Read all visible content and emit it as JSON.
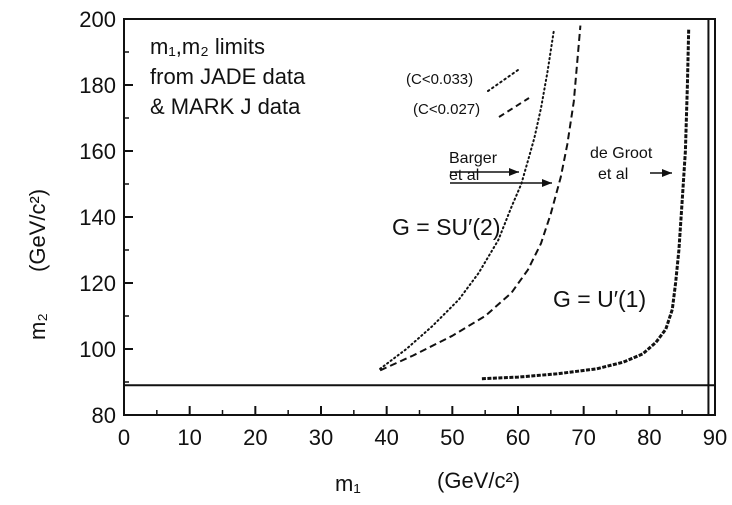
{
  "chart_data": {
    "type": "line",
    "xlabel": "m₁",
    "xunit": "(GeV/c²)",
    "ylabel": "m₂",
    "yunit": "(GeV/c²)",
    "xlim": [
      0,
      90
    ],
    "ylim": [
      80,
      200
    ],
    "xticks": [
      0,
      10,
      20,
      30,
      40,
      50,
      60,
      70,
      80,
      90
    ],
    "yticks": [
      80,
      100,
      120,
      140,
      160,
      180,
      200
    ],
    "grid": false,
    "legend": {
      "position": "top-left",
      "title": "m₁,m₂ limits",
      "lines": [
        {
          "text": "from JADE data",
          "cond": "(C<0.033)",
          "style": "dotted"
        },
        {
          "text": "& MARK J data",
          "cond": "(C<0.027)",
          "style": "dashed"
        }
      ]
    },
    "series": [
      {
        "style": "dotted",
        "group": "SU2",
        "x": [
          39,
          43,
          47,
          51,
          54,
          57,
          59,
          60.5,
          61.5,
          62.5,
          63.5,
          64.5,
          65.5
        ],
        "y": [
          94,
          100,
          107,
          115,
          123,
          133,
          143,
          150,
          157,
          164,
          173,
          184,
          197
        ]
      },
      {
        "style": "dashed",
        "group": "SU2",
        "x": [
          39,
          44,
          50,
          55,
          59,
          61.5,
          63.5,
          65,
          66.5,
          67.5,
          68.5,
          69.5
        ],
        "y": [
          93.5,
          98,
          104,
          110,
          117,
          124,
          132,
          141,
          152,
          162,
          175,
          198
        ]
      },
      {
        "style": "dashed",
        "group": "U1",
        "x": [
          54.5,
          60,
          66,
          72,
          76,
          79,
          81,
          82.5,
          83.5,
          84,
          84.5,
          85,
          85.5,
          85.8,
          86
        ],
        "y": [
          91,
          91.5,
          92.5,
          94,
          96,
          98.5,
          102,
          106,
          112,
          120,
          130,
          145,
          160,
          180,
          197
        ]
      }
    ],
    "reference_lines": [
      {
        "orientation": "horizontal",
        "y": 89
      },
      {
        "orientation": "vertical",
        "x": 89
      }
    ],
    "annotations": {
      "barger": [
        "Barger",
        "et al"
      ],
      "degroot": [
        "de Groot",
        "et al"
      ],
      "su2_label": "G = SU′(2)",
      "u1_label": "G = U′(1)"
    }
  }
}
